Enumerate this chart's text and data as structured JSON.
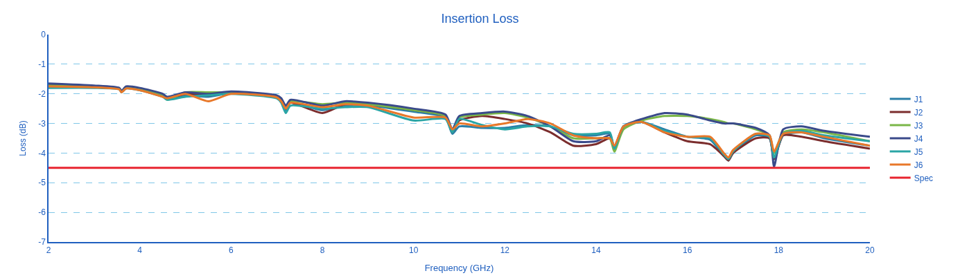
{
  "chart_data": {
    "type": "line",
    "title": "Insertion Loss",
    "xlabel": "Frequency (GHz)",
    "ylabel": "Loss (dB)",
    "x": [
      2,
      3,
      3.55,
      3.6,
      3.7,
      4,
      4.5,
      4.6,
      5,
      5.5,
      6,
      7,
      7.1,
      7.2,
      7.3,
      8,
      8.5,
      9,
      10,
      10.7,
      10.85,
      11,
      11.5,
      12,
      12.5,
      13,
      13.5,
      14,
      14.3,
      14.4,
      14.6,
      15,
      15.5,
      16,
      16.5,
      16.8,
      16.9,
      17,
      17.5,
      17.8,
      17.9,
      18.1,
      18.5,
      19,
      20
    ],
    "series": [
      {
        "name": "J1",
        "color": "#2a7fa8",
        "values": [
          -1.7,
          -1.75,
          -1.82,
          -1.92,
          -1.78,
          -1.85,
          -2.05,
          -2.15,
          -2.05,
          -2.1,
          -1.98,
          -2.1,
          -2.2,
          -2.55,
          -2.3,
          -2.55,
          -2.4,
          -2.4,
          -2.6,
          -2.8,
          -3.35,
          -3.1,
          -3.15,
          -3.15,
          -3.05,
          -3.1,
          -3.4,
          -3.4,
          -3.35,
          -3.85,
          -3.1,
          -2.95,
          -3.2,
          -3.45,
          -3.55,
          -4.1,
          -4.25,
          -4.0,
          -3.4,
          -3.5,
          -4.2,
          -3.4,
          -3.3,
          -3.5,
          -3.75
        ]
      },
      {
        "name": "J2",
        "color": "#7b2d2d",
        "values": [
          -1.7,
          -1.75,
          -1.82,
          -1.92,
          -1.78,
          -1.85,
          -2.05,
          -2.15,
          -2.0,
          -2.05,
          -1.95,
          -2.1,
          -2.2,
          -2.5,
          -2.3,
          -2.65,
          -2.35,
          -2.35,
          -2.55,
          -2.75,
          -3.3,
          -2.9,
          -2.75,
          -2.85,
          -3.0,
          -3.3,
          -3.75,
          -3.7,
          -3.5,
          -3.8,
          -3.1,
          -2.95,
          -3.3,
          -3.6,
          -3.7,
          -4.1,
          -4.25,
          -4.0,
          -3.5,
          -3.5,
          -4.2,
          -3.4,
          -3.45,
          -3.6,
          -3.85
        ]
      },
      {
        "name": "J3",
        "color": "#7ab648",
        "values": [
          -1.72,
          -1.75,
          -1.82,
          -1.92,
          -1.78,
          -1.85,
          -2.05,
          -2.2,
          -1.95,
          -1.95,
          -1.95,
          -2.1,
          -2.2,
          -2.45,
          -2.25,
          -2.35,
          -2.3,
          -2.35,
          -2.55,
          -2.75,
          -3.25,
          -2.8,
          -2.7,
          -2.65,
          -2.8,
          -3.1,
          -3.5,
          -3.5,
          -3.5,
          -3.95,
          -3.2,
          -2.9,
          -2.75,
          -2.75,
          -2.85,
          -2.95,
          -3.0,
          -3.0,
          -3.2,
          -3.4,
          -4.0,
          -3.3,
          -3.2,
          -3.3,
          -3.6
        ]
      },
      {
        "name": "J4",
        "color": "#3a4a8a",
        "values": [
          -1.65,
          -1.72,
          -1.8,
          -1.9,
          -1.75,
          -1.8,
          -2.0,
          -2.1,
          -1.95,
          -2.0,
          -1.92,
          -2.05,
          -2.15,
          -2.4,
          -2.2,
          -2.4,
          -2.25,
          -2.3,
          -2.5,
          -2.7,
          -3.2,
          -2.75,
          -2.65,
          -2.6,
          -2.75,
          -3.1,
          -3.6,
          -3.6,
          -3.4,
          -3.8,
          -3.1,
          -2.85,
          -2.65,
          -2.7,
          -2.9,
          -3.0,
          -3.0,
          -3.0,
          -3.15,
          -3.4,
          -4.45,
          -3.2,
          -3.1,
          -3.25,
          -3.45
        ]
      },
      {
        "name": "J5",
        "color": "#2aa5a5",
        "values": [
          -1.8,
          -1.8,
          -1.85,
          -1.95,
          -1.82,
          -1.88,
          -2.1,
          -2.2,
          -2.1,
          -2.05,
          -2.0,
          -2.15,
          -2.3,
          -2.65,
          -2.4,
          -2.5,
          -2.45,
          -2.45,
          -2.9,
          -2.85,
          -3.3,
          -2.85,
          -3.05,
          -3.2,
          -3.1,
          -3.1,
          -3.35,
          -3.35,
          -3.3,
          -3.85,
          -3.1,
          -2.95,
          -3.25,
          -3.45,
          -3.5,
          -4.05,
          -4.2,
          -3.95,
          -3.35,
          -3.45,
          -4.15,
          -3.35,
          -3.25,
          -3.4,
          -3.6
        ]
      },
      {
        "name": "J6",
        "color": "#e8782a",
        "values": [
          -1.75,
          -1.78,
          -1.85,
          -1.95,
          -1.82,
          -1.88,
          -2.1,
          -2.15,
          -2.0,
          -2.25,
          -2.0,
          -2.12,
          -2.25,
          -2.5,
          -2.3,
          -2.45,
          -2.35,
          -2.4,
          -2.8,
          -2.8,
          -3.2,
          -3.0,
          -3.1,
          -3.0,
          -2.85,
          -3.0,
          -3.4,
          -3.5,
          -3.5,
          -3.75,
          -3.1,
          -2.95,
          -3.3,
          -3.45,
          -3.45,
          -4.0,
          -4.15,
          -3.9,
          -3.35,
          -3.4,
          -3.95,
          -3.35,
          -3.3,
          -3.45,
          -3.75
        ]
      },
      {
        "name": "Spec",
        "color": "#e8242f",
        "x": [
          2,
          20
        ],
        "values": [
          -4.5,
          -4.5
        ]
      }
    ],
    "xlim": [
      2,
      20
    ],
    "xticks": [
      2,
      4,
      6,
      8,
      10,
      12,
      14,
      16,
      18,
      20
    ],
    "ylim": [
      -7,
      0
    ],
    "yticks": [
      -7,
      -6,
      -5,
      -4,
      -3,
      -2,
      -1,
      0
    ],
    "grid": "y",
    "legend": "right",
    "marker": "none",
    "line_style": "solid"
  }
}
